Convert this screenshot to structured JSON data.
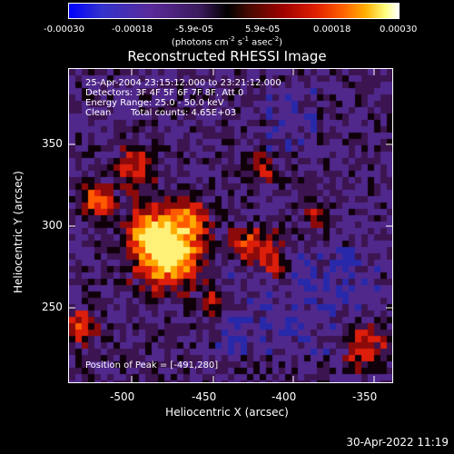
{
  "colorbar": {
    "ticks": [
      "-0.00030",
      "-0.00018",
      "-5.9e-05",
      "5.9e-05",
      "0.00018",
      "0.00030"
    ],
    "units_prefix": "(photons cm",
    "units_exp1": "-2",
    "units_mid": " s",
    "units_exp2": "-1",
    "units_mid2": " asec",
    "units_exp3": "-2",
    "units_suffix": ")"
  },
  "title": "Reconstructed RHESSI Image",
  "info": {
    "time": "25-Apr-2004 23:15:12.000 to 23:21:12.000",
    "detectors": "Detectors: 3F 4F 5F 6F 7F 8F, Att 0",
    "energy": "Energy Range: 25.0 - 50.0 keV",
    "method": "Clean",
    "counts": "Total counts: 4.65E+03",
    "peak": "Position of Peak = [-491,280]"
  },
  "axes": {
    "xlabel": "Heliocentric X (arcsec)",
    "ylabel": "Heliocentric Y (arcsec)",
    "xticks": [
      "-500",
      "-450",
      "-400",
      "-350"
    ],
    "yticks": [
      "350",
      "300",
      "250"
    ]
  },
  "timestamp": "30-Apr-2022 11:19"
}
